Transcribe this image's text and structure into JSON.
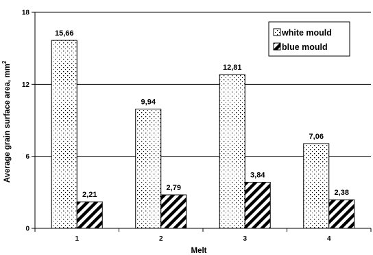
{
  "chart_data": {
    "type": "bar",
    "title": "",
    "xlabel": "Melt",
    "ylabel": "Average grain surface area, mm",
    "ylabel_superscript": "2",
    "categories": [
      "1",
      "2",
      "3",
      "4"
    ],
    "series": [
      {
        "name": "white mould",
        "values": [
          15.66,
          9.94,
          12.81,
          7.06
        ],
        "labels": [
          "15,66",
          "9,94",
          "12,81",
          "7,06"
        ]
      },
      {
        "name": "blue mould",
        "values": [
          2.21,
          2.79,
          3.84,
          2.38
        ],
        "labels": [
          "2,21",
          "2,79",
          "3,84",
          "2,38"
        ]
      }
    ],
    "ylim": [
      0,
      18
    ],
    "yticks": [
      0,
      6,
      12,
      18
    ],
    "grid": "horizontal",
    "legend_position": "top-right"
  }
}
